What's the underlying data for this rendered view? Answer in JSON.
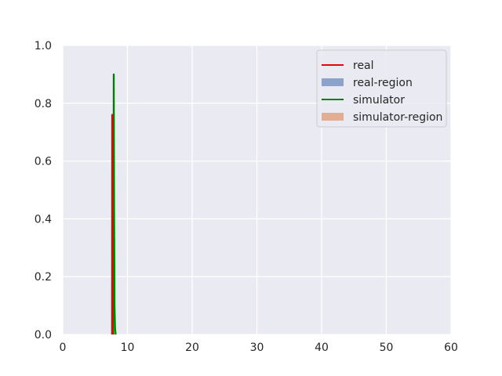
{
  "chart_data": {
    "type": "line",
    "title": "",
    "xlabel": "",
    "ylabel": "",
    "xlim": [
      0,
      60
    ],
    "ylim": [
      0,
      1.0
    ],
    "x_ticks": [
      "0",
      "10",
      "20",
      "30",
      "40",
      "50",
      "60"
    ],
    "y_ticks": [
      "0.0",
      "0.2",
      "0.4",
      "0.6",
      "0.8",
      "1.0"
    ],
    "grid": true,
    "legend_position": "top-right",
    "series": [
      {
        "name": "real",
        "kind": "line",
        "color": "#e8000b",
        "x": [
          7.6,
          7.62,
          7.66,
          7.72,
          7.78,
          7.84
        ],
        "y": [
          0.0,
          0.76,
          0.76,
          0.55,
          0.1,
          0.0
        ]
      },
      {
        "name": "real-region",
        "kind": "band",
        "color": "#4c72b0",
        "x": [
          7.6,
          7.7,
          7.8
        ],
        "y_low": [
          0.0,
          0.0,
          0.0
        ],
        "y_high": [
          0.02,
          0.05,
          0.02
        ]
      },
      {
        "name": "simulator",
        "kind": "line",
        "color": "#008000",
        "x": [
          7.82,
          7.86,
          7.9,
          7.96,
          8.02,
          8.1,
          8.2
        ],
        "y": [
          0.0,
          0.9,
          0.9,
          0.4,
          0.1,
          0.02,
          0.0
        ]
      },
      {
        "name": "simulator-region",
        "kind": "band",
        "color": "#dd8452",
        "x": [
          7.6,
          7.9,
          8.2
        ],
        "y_low": [
          0.0,
          0.0,
          0.0
        ],
        "y_high": [
          0.04,
          0.06,
          0.04
        ]
      }
    ]
  }
}
